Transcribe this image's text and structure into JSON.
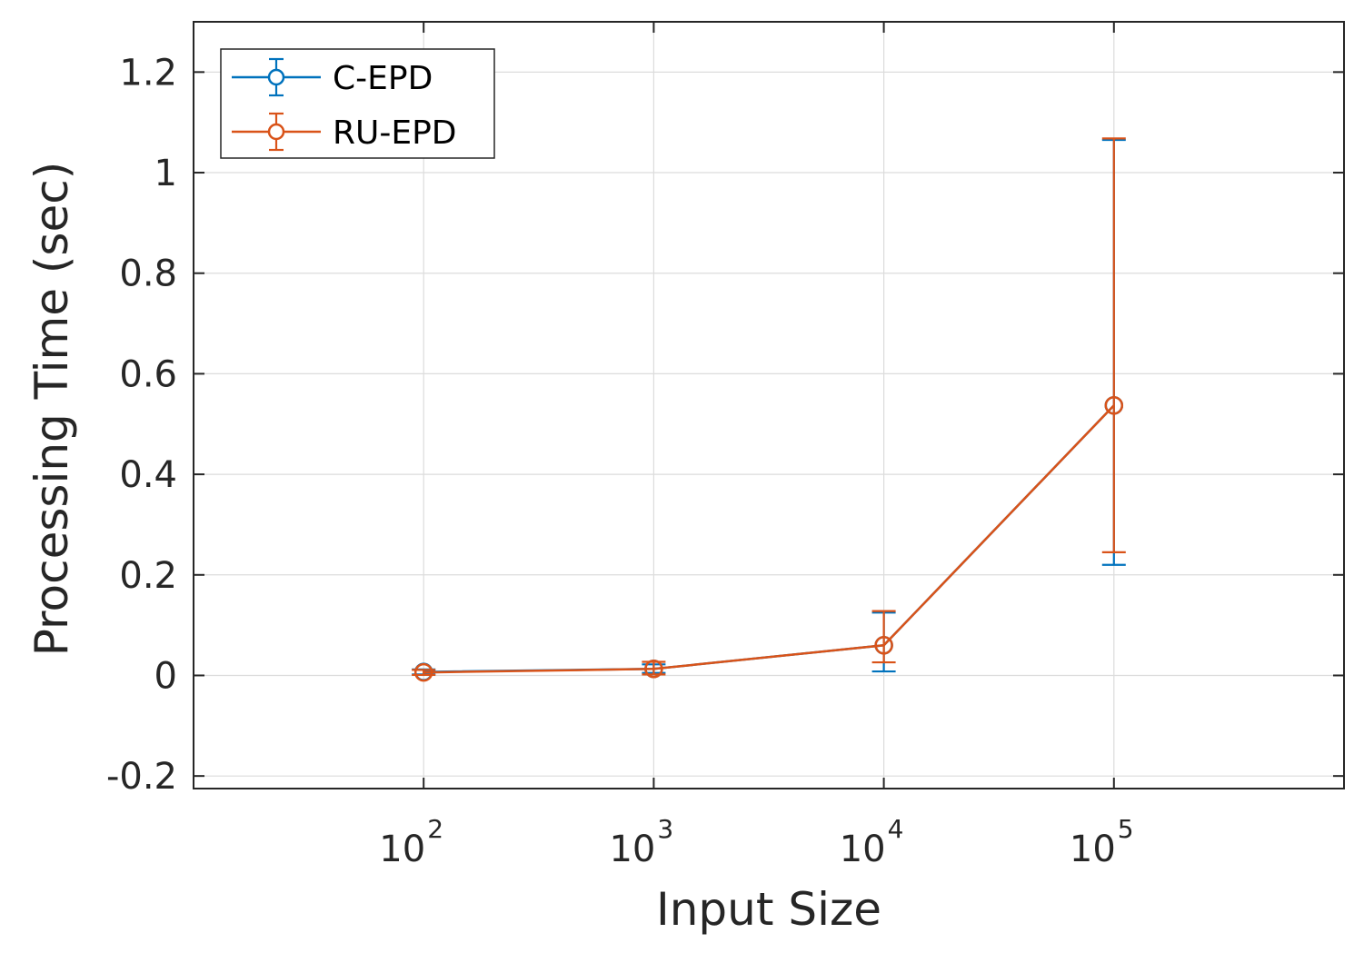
{
  "chart_data": {
    "type": "line",
    "title": "",
    "xlabel": "Input Size",
    "ylabel": "Processing Time (sec)",
    "xscale": "log",
    "xlim": [
      10,
      1000000
    ],
    "ylim": [
      -0.225,
      1.3
    ],
    "x_ticks": [
      {
        "base": "10",
        "exp": "2",
        "value": 100
      },
      {
        "base": "10",
        "exp": "3",
        "value": 1000
      },
      {
        "base": "10",
        "exp": "4",
        "value": 10000
      },
      {
        "base": "10",
        "exp": "5",
        "value": 100000
      }
    ],
    "y_ticks": [
      {
        "label": "-0.2",
        "value": -0.2
      },
      {
        "label": "0",
        "value": 0
      },
      {
        "label": "0.2",
        "value": 0.2
      },
      {
        "label": "0.4",
        "value": 0.4
      },
      {
        "label": "0.6",
        "value": 0.6
      },
      {
        "label": "0.8",
        "value": 0.8
      },
      {
        "label": "1",
        "value": 1.0
      },
      {
        "label": "1.2",
        "value": 1.2
      }
    ],
    "grid": true,
    "legend_position": "top-left",
    "series": [
      {
        "name": "C-EPD",
        "color": "#0072BD",
        "x": [
          100,
          1000,
          10000,
          100000
        ],
        "y": [
          0.007,
          0.013,
          0.06,
          0.537
        ],
        "err_low": [
          0.002,
          0.005,
          0.008,
          0.22
        ],
        "err_high": [
          0.012,
          0.022,
          0.125,
          1.065
        ]
      },
      {
        "name": "RU-EPD",
        "color": "#D95319",
        "x": [
          100,
          1000,
          10000,
          100000
        ],
        "y": [
          0.006,
          0.013,
          0.06,
          0.537
        ],
        "err_low": [
          0.001,
          0.002,
          0.026,
          0.245
        ],
        "err_high": [
          0.011,
          0.027,
          0.128,
          1.068
        ]
      }
    ]
  }
}
